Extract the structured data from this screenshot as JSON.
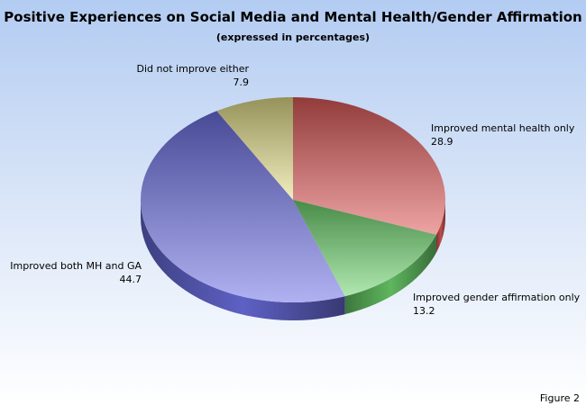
{
  "chart_data": {
    "type": "pie",
    "title": "Positive Experiences on Social Media and Mental Health/Gender Affirmation",
    "subtitle": "(expressed in percentages)",
    "slices": [
      {
        "label": "Improved mental health only",
        "value": 28.9,
        "color": "#e05a5a"
      },
      {
        "label": "Improved gender affirmation only",
        "value": 13.2,
        "color": "#6fd66f"
      },
      {
        "label": "Improved both MH and GA",
        "value": 44.7,
        "color": "#6f72e6"
      },
      {
        "label": "Did not improve either",
        "value": 7.9,
        "color": "#e6e08a"
      }
    ],
    "style": "3d-tilted"
  },
  "footer": "Figure 2"
}
